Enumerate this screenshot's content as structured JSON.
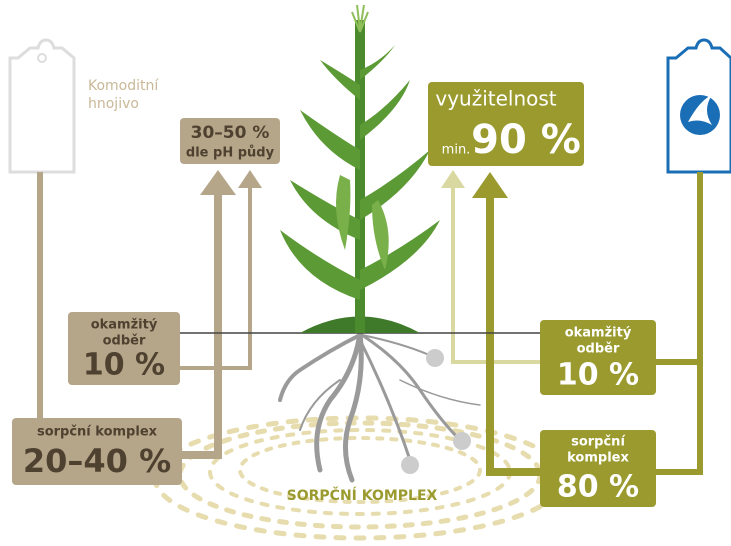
{
  "left_product": {
    "label_lines": [
      "Komoditní",
      "hnojivo"
    ]
  },
  "left_total": {
    "value": "30–50 %",
    "note": "dle pH půdy"
  },
  "right_total": {
    "label": "využitelnost",
    "prefix": "min.",
    "value": "90 %"
  },
  "left_boxes": [
    {
      "label_lines": [
        "okamžitý",
        "odběr"
      ],
      "value": "10 %"
    },
    {
      "label_lines": [
        "sorpční komplex"
      ],
      "value": "20–40 %"
    }
  ],
  "right_boxes": [
    {
      "label_lines": [
        "okamžitý",
        "odběr"
      ],
      "value": "10 %"
    },
    {
      "label_lines": [
        "sorpční",
        "komplex"
      ],
      "value": "80 %"
    }
  ],
  "soil_label": "SORPČNÍ KOMPLEX"
}
